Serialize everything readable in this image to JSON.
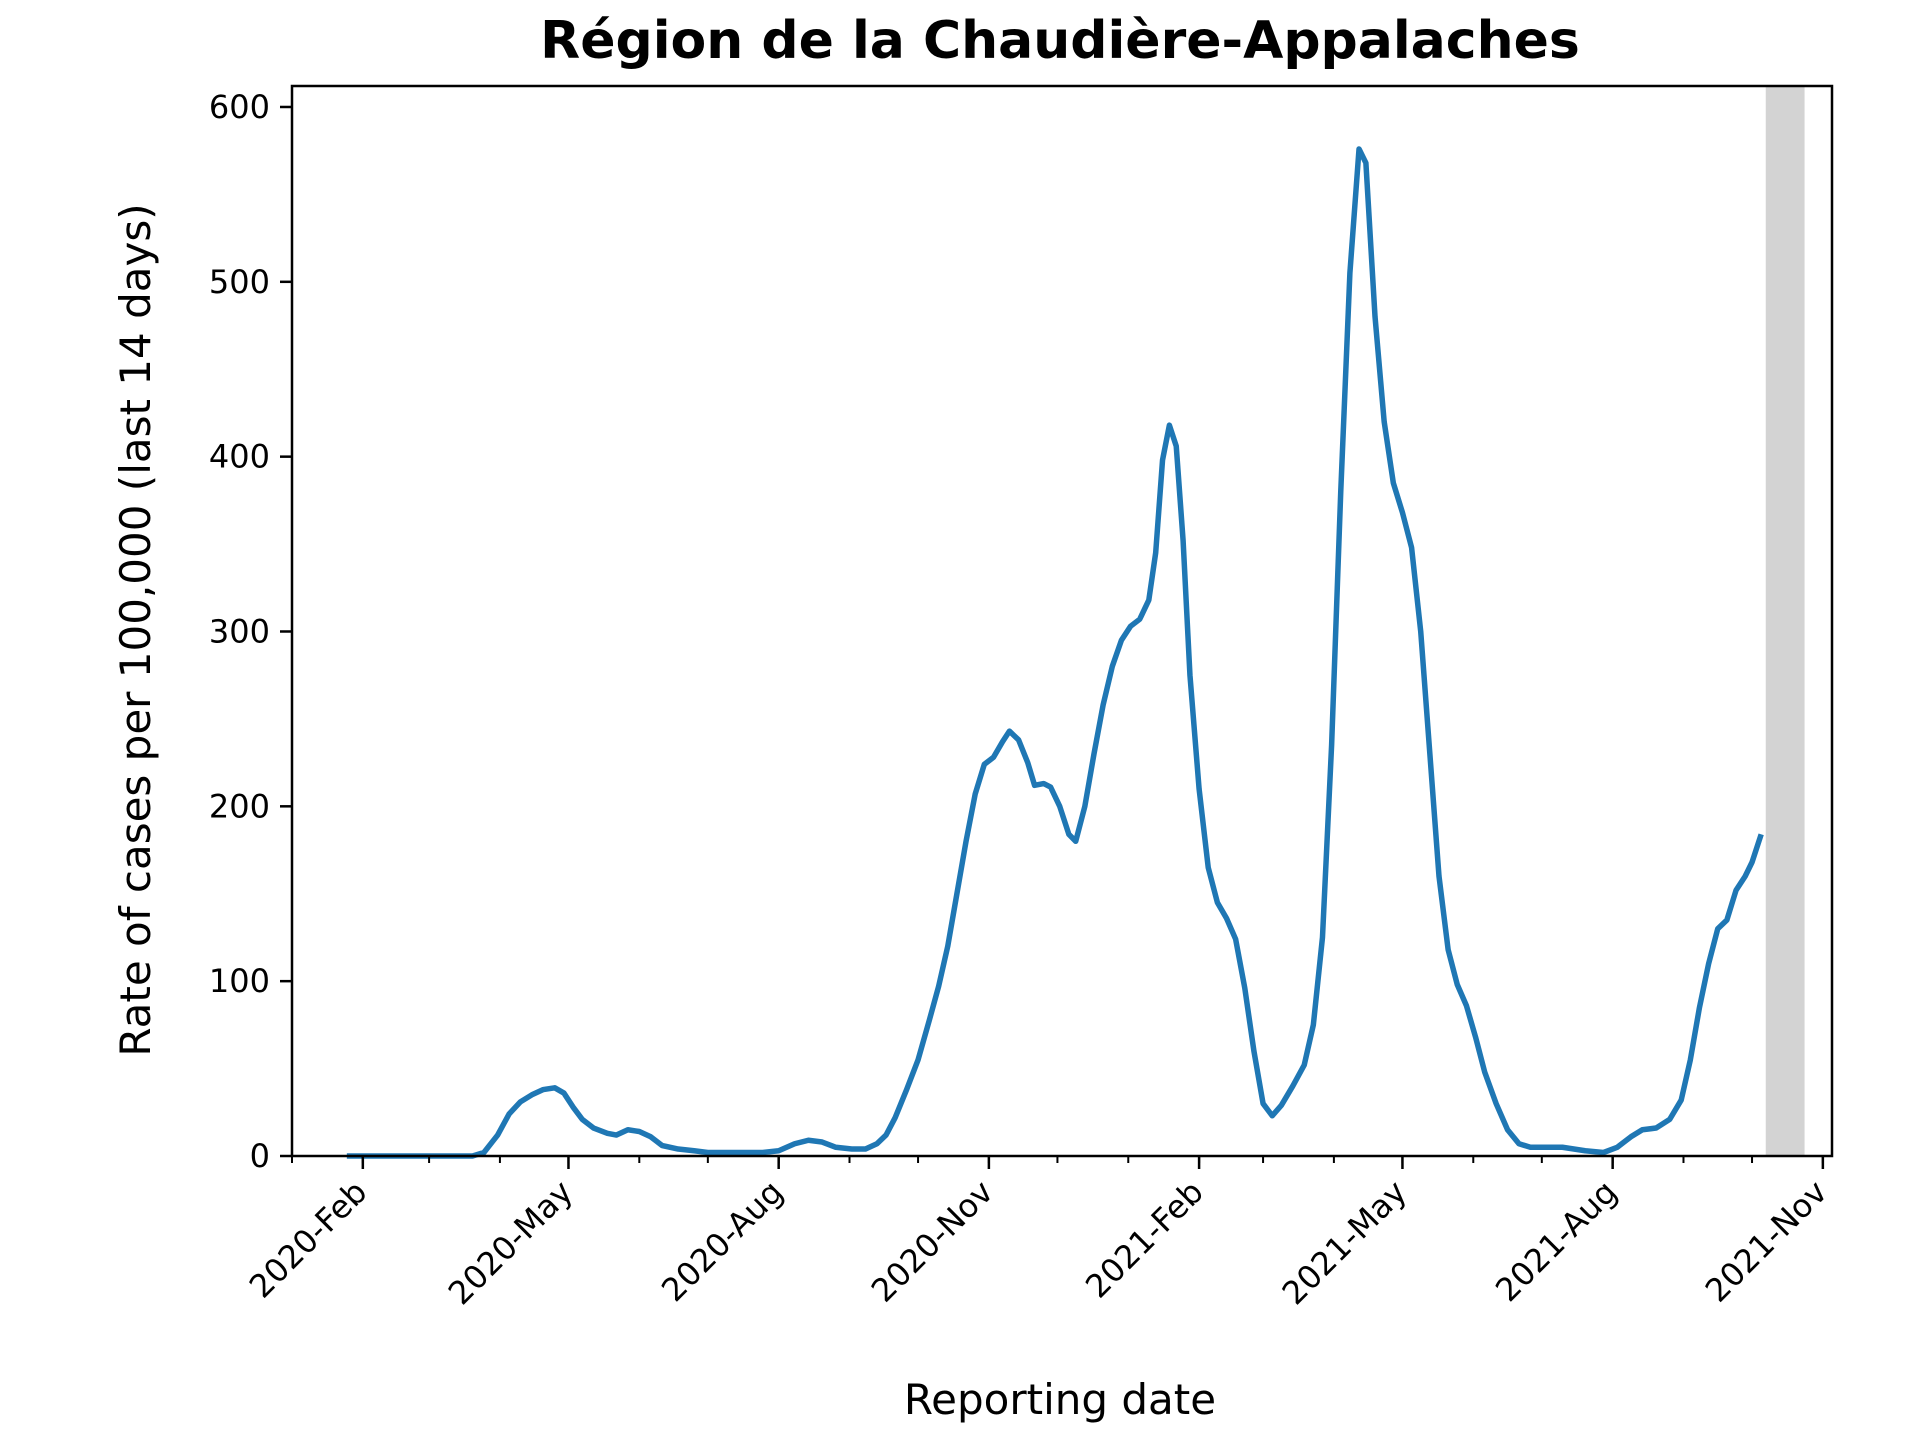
{
  "chart_data": {
    "type": "line",
    "title": "Région de la Chaudière-Appalaches",
    "xlabel": "Reporting date",
    "ylabel": "Rate of cases per 100,000 (last 14 days)",
    "x_tick_labels": [
      "2020-Feb",
      "2020-May",
      "2020-Aug",
      "2020-Nov",
      "2021-Feb",
      "2021-May",
      "2021-Aug",
      "2021-Nov"
    ],
    "x_tick_dates": [
      "2020-02-01",
      "2020-05-01",
      "2020-08-01",
      "2020-11-01",
      "2021-02-01",
      "2021-05-01",
      "2021-08-01",
      "2021-11-01"
    ],
    "y_ticks": [
      0,
      100,
      200,
      300,
      400,
      500,
      600
    ],
    "xlim": [
      "2020-01-01",
      "2021-11-05"
    ],
    "ylim": [
      0,
      612
    ],
    "grid": false,
    "line_color": "#1f77b4",
    "shaded_band": {
      "start": "2021-10-07",
      "end": "2021-10-24",
      "color": "#d3d3d3"
    },
    "series": [
      {
        "points": [
          [
            "2020-01-25",
            0
          ],
          [
            "2020-03-20",
            0
          ],
          [
            "2020-03-25",
            2
          ],
          [
            "2020-03-31",
            12
          ],
          [
            "2020-04-05",
            24
          ],
          [
            "2020-04-10",
            31
          ],
          [
            "2020-04-15",
            35
          ],
          [
            "2020-04-20",
            38
          ],
          [
            "2020-04-25",
            39
          ],
          [
            "2020-04-29",
            36
          ],
          [
            "2020-05-03",
            28
          ],
          [
            "2020-05-07",
            21
          ],
          [
            "2020-05-12",
            16
          ],
          [
            "2020-05-18",
            13
          ],
          [
            "2020-05-22",
            12
          ],
          [
            "2020-05-27",
            15
          ],
          [
            "2020-06-01",
            14
          ],
          [
            "2020-06-06",
            11
          ],
          [
            "2020-06-11",
            6
          ],
          [
            "2020-06-18",
            4
          ],
          [
            "2020-06-25",
            3
          ],
          [
            "2020-07-01",
            2
          ],
          [
            "2020-07-15",
            2
          ],
          [
            "2020-07-25",
            2
          ],
          [
            "2020-08-01",
            3
          ],
          [
            "2020-08-08",
            7
          ],
          [
            "2020-08-14",
            9
          ],
          [
            "2020-08-20",
            8
          ],
          [
            "2020-08-26",
            5
          ],
          [
            "2020-09-02",
            4
          ],
          [
            "2020-09-08",
            4
          ],
          [
            "2020-09-13",
            7
          ],
          [
            "2020-09-17",
            12
          ],
          [
            "2020-09-21",
            22
          ],
          [
            "2020-09-26",
            38
          ],
          [
            "2020-10-01",
            55
          ],
          [
            "2020-10-06",
            78
          ],
          [
            "2020-10-10",
            97
          ],
          [
            "2020-10-14",
            120
          ],
          [
            "2020-10-18",
            150
          ],
          [
            "2020-10-22",
            180
          ],
          [
            "2020-10-26",
            207
          ],
          [
            "2020-10-30",
            224
          ],
          [
            "2020-11-03",
            228
          ],
          [
            "2020-11-07",
            237
          ],
          [
            "2020-11-10",
            243
          ],
          [
            "2020-11-14",
            238
          ],
          [
            "2020-11-18",
            225
          ],
          [
            "2020-11-21",
            212
          ],
          [
            "2020-11-25",
            213
          ],
          [
            "2020-11-28",
            211
          ],
          [
            "2020-12-02",
            200
          ],
          [
            "2020-12-06",
            184
          ],
          [
            "2020-12-09",
            180
          ],
          [
            "2020-12-13",
            200
          ],
          [
            "2020-12-17",
            230
          ],
          [
            "2020-12-21",
            258
          ],
          [
            "2020-12-25",
            280
          ],
          [
            "2020-12-29",
            295
          ],
          [
            "2021-01-02",
            303
          ],
          [
            "2021-01-06",
            307
          ],
          [
            "2021-01-10",
            318
          ],
          [
            "2021-01-13",
            345
          ],
          [
            "2021-01-16",
            398
          ],
          [
            "2021-01-19",
            418
          ],
          [
            "2021-01-22",
            406
          ],
          [
            "2021-01-25",
            352
          ],
          [
            "2021-01-28",
            275
          ],
          [
            "2021-02-01",
            210
          ],
          [
            "2021-02-05",
            165
          ],
          [
            "2021-02-09",
            145
          ],
          [
            "2021-02-13",
            136
          ],
          [
            "2021-02-17",
            124
          ],
          [
            "2021-02-21",
            96
          ],
          [
            "2021-02-25",
            60
          ],
          [
            "2021-03-01",
            30
          ],
          [
            "2021-03-05",
            23
          ],
          [
            "2021-03-09",
            29
          ],
          [
            "2021-03-14",
            40
          ],
          [
            "2021-03-19",
            52
          ],
          [
            "2021-03-23",
            75
          ],
          [
            "2021-03-27",
            125
          ],
          [
            "2021-03-31",
            235
          ],
          [
            "2021-04-04",
            380
          ],
          [
            "2021-04-08",
            505
          ],
          [
            "2021-04-12",
            576
          ],
          [
            "2021-04-15",
            568
          ],
          [
            "2021-04-19",
            480
          ],
          [
            "2021-04-23",
            420
          ],
          [
            "2021-04-27",
            385
          ],
          [
            "2021-05-01",
            368
          ],
          [
            "2021-05-05",
            348
          ],
          [
            "2021-05-09",
            300
          ],
          [
            "2021-05-13",
            230
          ],
          [
            "2021-05-17",
            160
          ],
          [
            "2021-05-21",
            118
          ],
          [
            "2021-05-25",
            98
          ],
          [
            "2021-05-29",
            86
          ],
          [
            "2021-06-02",
            68
          ],
          [
            "2021-06-06",
            48
          ],
          [
            "2021-06-11",
            30
          ],
          [
            "2021-06-16",
            15
          ],
          [
            "2021-06-21",
            7
          ],
          [
            "2021-06-26",
            5
          ],
          [
            "2021-07-10",
            5
          ],
          [
            "2021-07-20",
            3
          ],
          [
            "2021-07-28",
            2
          ],
          [
            "2021-08-03",
            5
          ],
          [
            "2021-08-09",
            11
          ],
          [
            "2021-08-14",
            15
          ],
          [
            "2021-08-20",
            16
          ],
          [
            "2021-08-26",
            21
          ],
          [
            "2021-08-31",
            32
          ],
          [
            "2021-09-04",
            55
          ],
          [
            "2021-09-08",
            85
          ],
          [
            "2021-09-12",
            110
          ],
          [
            "2021-09-16",
            130
          ],
          [
            "2021-09-20",
            135
          ],
          [
            "2021-09-24",
            152
          ],
          [
            "2021-09-28",
            160
          ],
          [
            "2021-10-01",
            168
          ],
          [
            "2021-10-05",
            184
          ]
        ]
      }
    ]
  }
}
